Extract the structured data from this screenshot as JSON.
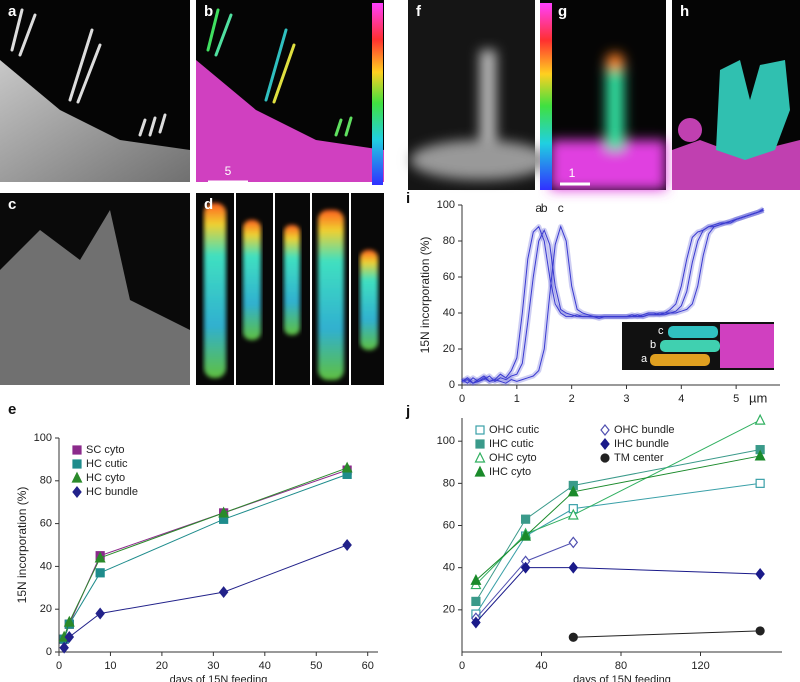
{
  "image_panels": {
    "labels": [
      "a",
      "b",
      "c",
      "d",
      "f",
      "g",
      "h"
    ],
    "scale_bar_labels": [
      "5",
      "1"
    ],
    "inset_labels": [
      "c",
      "b",
      "a"
    ]
  },
  "chart_data": [
    {
      "type": "line",
      "panel": "e",
      "xlabel": "days of 15N feeding",
      "ylabel": "15N incorporation (%)",
      "xlim": [
        0,
        62
      ],
      "xticks": [
        0,
        10,
        20,
        30,
        40,
        50,
        60
      ],
      "ylim": [
        0,
        100
      ],
      "yticks": [
        0,
        20,
        40,
        60,
        80,
        100
      ],
      "legend": "upper left",
      "x": [
        1,
        2,
        8,
        32,
        56
      ],
      "series": [
        {
          "name": "SC cyto",
          "color": "#8b2a8b",
          "marker": "square",
          "filled": true,
          "values": [
            6,
            13,
            45,
            65,
            85
          ]
        },
        {
          "name": "HC cutic",
          "color": "#1e8c8c",
          "marker": "square",
          "filled": true,
          "values": [
            6,
            13,
            37,
            62,
            83
          ]
        },
        {
          "name": "HC cyto",
          "color": "#2a8a2a",
          "marker": "triangle",
          "filled": true,
          "values": [
            7,
            14,
            44,
            65,
            86
          ]
        },
        {
          "name": "HC bundle",
          "color": "#22228a",
          "marker": "diamond",
          "filled": true,
          "values": [
            2,
            7,
            18,
            28,
            50
          ]
        }
      ]
    },
    {
      "type": "line",
      "panel": "i",
      "ylabel": "15N incorporation (%)",
      "x_unit": "µm",
      "xlim": [
        0,
        5.8
      ],
      "xticks": [
        0,
        1,
        2,
        3,
        4,
        5
      ],
      "ylim": [
        0,
        100
      ],
      "yticks": [
        0,
        20,
        40,
        60,
        80,
        100
      ],
      "band": true,
      "x": [
        0,
        0.1,
        0.2,
        0.3,
        0.4,
        0.5,
        0.6,
        0.7,
        0.8,
        0.9,
        1.0,
        1.1,
        1.2,
        1.3,
        1.4,
        1.5,
        1.6,
        1.7,
        1.8,
        1.9,
        2.0,
        2.1,
        2.2,
        2.3,
        2.4,
        2.5,
        2.6,
        2.7,
        2.8,
        2.9,
        3.0,
        3.1,
        3.2,
        3.3,
        3.4,
        3.5,
        3.6,
        3.7,
        3.8,
        3.9,
        4.0,
        4.1,
        4.2,
        4.3,
        4.4,
        4.5,
        4.6,
        4.7,
        4.8,
        4.9,
        5.0,
        5.1,
        5.2,
        5.3,
        5.4,
        5.5
      ],
      "series": [
        {
          "name": "a",
          "color": "#3a3ad0",
          "values": [
            2,
            4,
            1,
            3,
            5,
            2,
            3,
            6,
            4,
            8,
            15,
            40,
            70,
            85,
            88,
            80,
            60,
            45,
            40,
            38,
            38,
            39,
            38,
            38,
            38,
            37,
            38,
            38,
            38,
            38,
            38,
            39,
            38,
            39,
            40,
            40,
            39,
            40,
            42,
            45,
            55,
            70,
            82,
            85,
            86,
            88,
            88,
            89,
            90,
            90,
            92,
            93,
            94,
            95,
            96,
            98
          ]
        },
        {
          "name": "b",
          "color": "#3a3ad0",
          "values": [
            3,
            1,
            4,
            2,
            3,
            5,
            2,
            4,
            3,
            5,
            6,
            12,
            35,
            60,
            80,
            86,
            78,
            55,
            42,
            40,
            39,
            38,
            38,
            38,
            38,
            38,
            38,
            38,
            38,
            38,
            38,
            38,
            39,
            38,
            39,
            39,
            40,
            40,
            40,
            41,
            44,
            52,
            68,
            80,
            86,
            88,
            89,
            90,
            90,
            91,
            92,
            93,
            94,
            95,
            96,
            97
          ]
        },
        {
          "name": "c",
          "color": "#3a3ad0",
          "values": [
            2,
            3,
            1,
            2,
            4,
            2,
            3,
            2,
            1,
            3,
            2,
            3,
            4,
            5,
            8,
            20,
            50,
            78,
            88,
            80,
            55,
            42,
            40,
            39,
            38,
            38,
            38,
            38,
            38,
            38,
            38,
            38,
            38,
            38,
            39,
            39,
            39,
            39,
            40,
            40,
            41,
            42,
            45,
            55,
            72,
            84,
            88,
            89,
            90,
            91,
            92,
            93,
            94,
            95,
            96,
            97
          ]
        }
      ]
    },
    {
      "type": "line",
      "panel": "j",
      "xlabel": "days of 15N feeding",
      "xlim": [
        0,
        161
      ],
      "xticks": [
        0,
        40,
        80,
        120
      ],
      "ylim": [
        0,
        111
      ],
      "yticks": [
        20,
        40,
        60,
        80,
        100
      ],
      "legend": "upper left",
      "series": [
        {
          "name": "OHC cutic",
          "color": "#3aa0a8",
          "marker": "square",
          "filled": false,
          "x": [
            7,
            32,
            56,
            150
          ],
          "values": [
            18,
            55,
            68,
            80
          ]
        },
        {
          "name": "IHC cutic",
          "color": "#3a9a8a",
          "marker": "square",
          "filled": true,
          "x": [
            7,
            32,
            56,
            150
          ],
          "values": [
            24,
            63,
            79,
            96
          ]
        },
        {
          "name": "OHC cyto",
          "color": "#30b060",
          "marker": "triangle",
          "filled": false,
          "x": [
            7,
            32,
            56,
            150
          ],
          "values": [
            32,
            56,
            65,
            110
          ]
        },
        {
          "name": "IHC cyto",
          "color": "#1a8a2a",
          "marker": "triangle",
          "filled": true,
          "x": [
            7,
            32,
            56,
            150
          ],
          "values": [
            34,
            55,
            76,
            93
          ]
        },
        {
          "name": "OHC bundle",
          "color": "#5050b0",
          "marker": "diamond",
          "filled": false,
          "x": [
            7,
            32,
            56
          ],
          "values": [
            16,
            43,
            52
          ]
        },
        {
          "name": "IHC bundle",
          "color": "#1a1a8a",
          "marker": "diamond",
          "filled": true,
          "x": [
            7,
            32,
            56,
            150
          ],
          "values": [
            14,
            40,
            40,
            37
          ]
        },
        {
          "name": "TM center",
          "color": "#222222",
          "marker": "circle",
          "filled": true,
          "x": [
            56,
            150
          ],
          "values": [
            7,
            10
          ]
        }
      ]
    }
  ]
}
